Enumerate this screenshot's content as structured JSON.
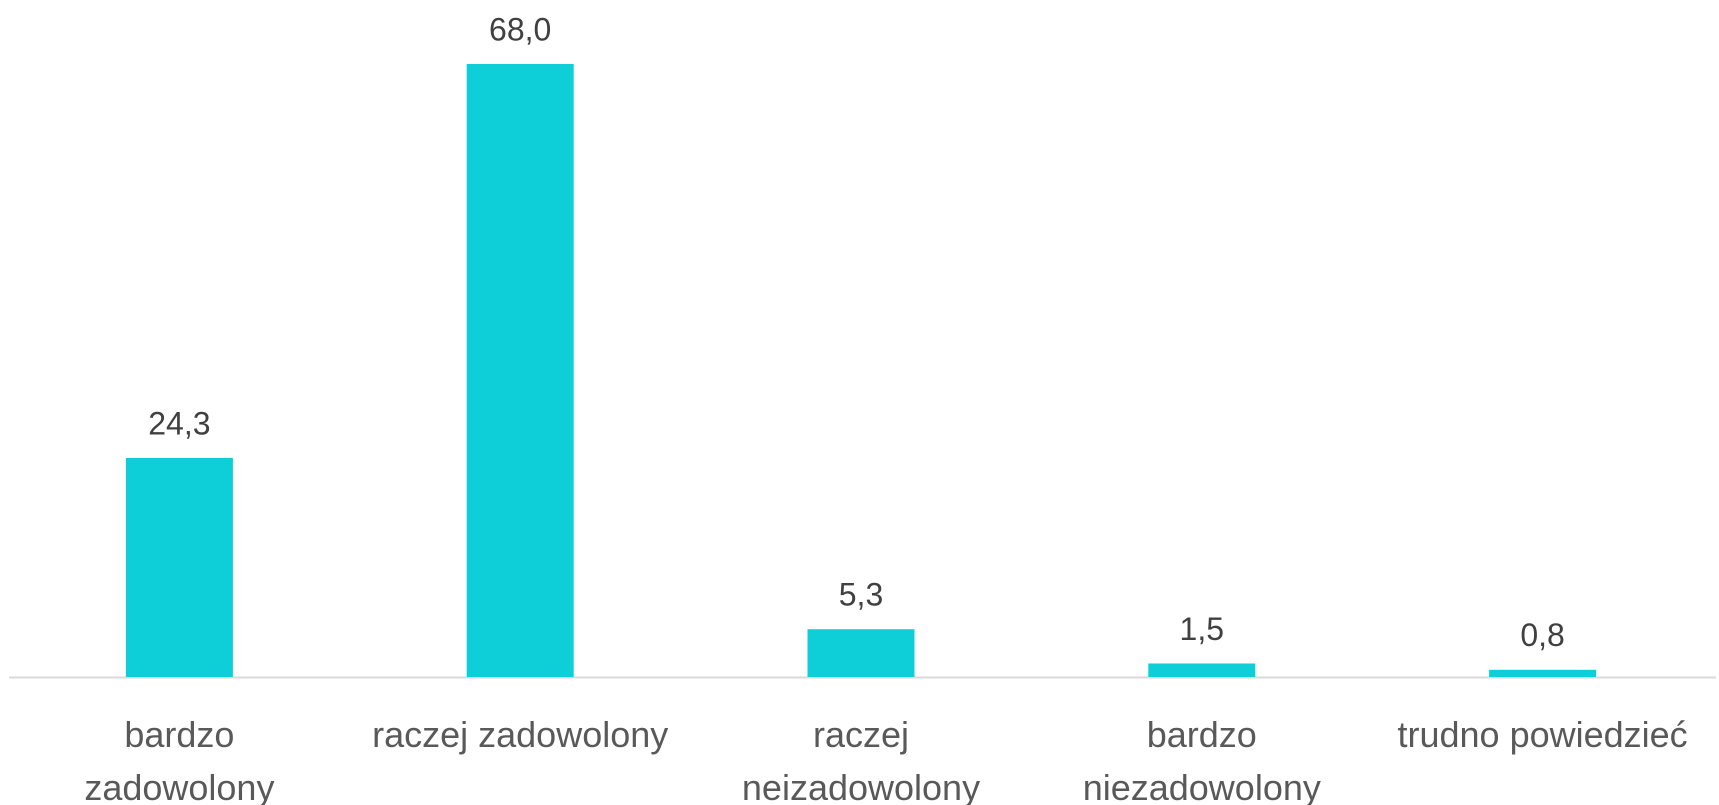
{
  "chart_data": {
    "type": "bar",
    "categories": [
      "bardzo zadowolony",
      "raczej zadowolony",
      "raczej neizadowolony",
      "bardzo niezadowolony",
      "trudno powiedzieć"
    ],
    "values": [
      24.3,
      68.0,
      5.3,
      1.5,
      0.8
    ],
    "value_labels": [
      "24,3",
      "68,0",
      "5,3",
      "1,5",
      "0,8"
    ],
    "color": "#0ecfd8"
  }
}
